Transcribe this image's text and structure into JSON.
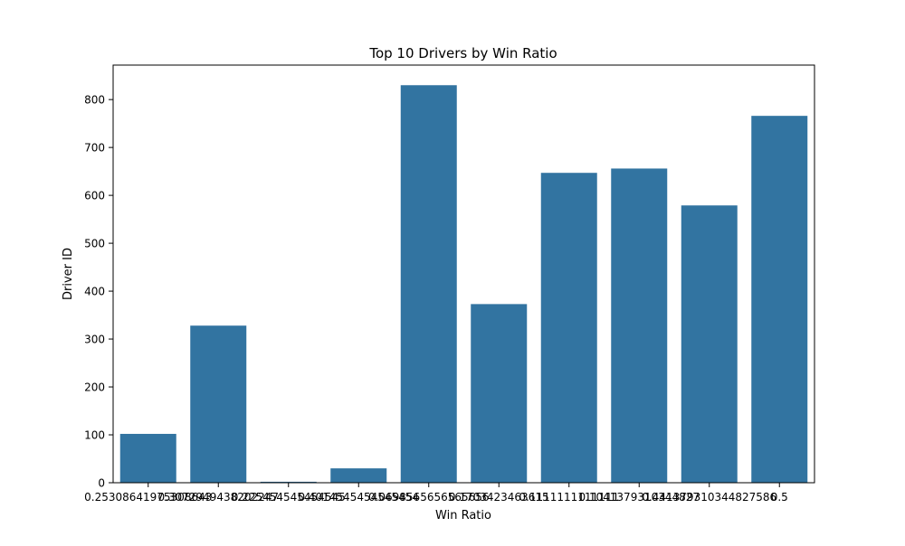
{
  "chart_data": {
    "type": "bar",
    "title": "Top 10 Drivers by Win Ratio",
    "xlabel": "Win Ratio",
    "ylabel": "Driver ID",
    "categories": [
      "0.25308641975308643",
      "0.3072949438202247",
      "0.225454545454545",
      "0.4014545454545454",
      "0.0698565656565656",
      "0.1703423463615",
      "0.1111111111111",
      "0.1041379310344827",
      "0.441379310344827586",
      "0.5"
    ],
    "values": [
      102,
      328,
      2,
      30,
      830,
      373,
      647,
      656,
      579,
      766
    ],
    "ylim": [
      0,
      872
    ],
    "yticks": [
      0,
      100,
      200,
      300,
      400,
      500,
      600,
      700,
      800
    ],
    "grid": false,
    "bar_color": "#3274a1"
  }
}
